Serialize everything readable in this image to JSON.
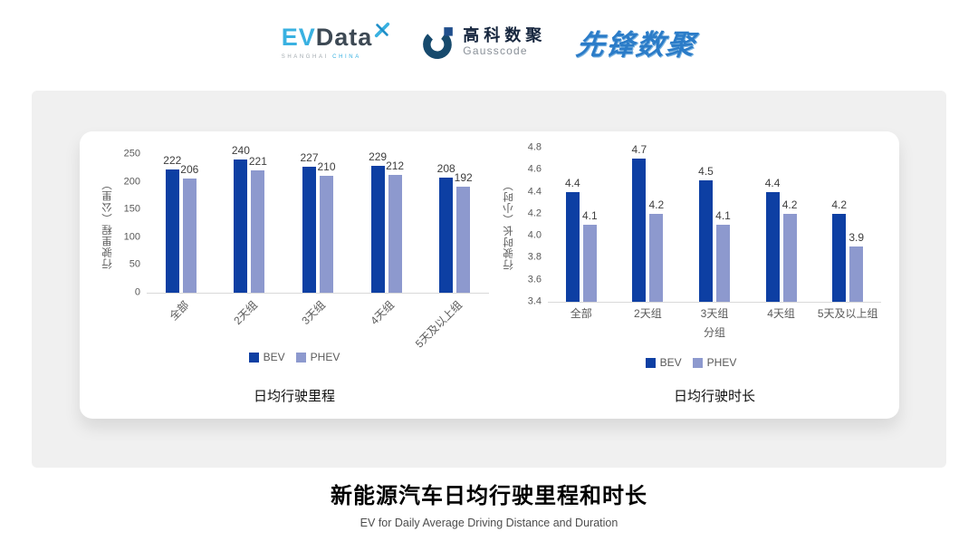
{
  "header": {
    "evdata_logo": {
      "ev": "EV",
      "data": "Data",
      "sub_shanghai": "SHANGHAI",
      "sub_china": "CHINA"
    },
    "gausscode_logo": {
      "cn": "高科数聚",
      "en": "Gausscode"
    },
    "pioneer_logo": {
      "text": "先锋数聚"
    }
  },
  "chart_data": [
    {
      "type": "bar",
      "title": "日均行驶里程",
      "categories": [
        "全部",
        "2天组",
        "3天组",
        "4天组",
        "5天及以上组"
      ],
      "series": [
        {
          "name": "BEV",
          "color": "#0d3fa3",
          "values": [
            222,
            240,
            227,
            229,
            208
          ],
          "labels": [
            "222",
            "240",
            "227",
            "229",
            "208"
          ]
        },
        {
          "name": "PHEV",
          "color": "#8d99ce",
          "values": [
            206,
            221,
            210,
            212,
            192
          ],
          "labels": [
            "206",
            "221",
            "210",
            "212",
            "192"
          ]
        }
      ],
      "xlabel": "",
      "ylabel": "行驶里程（公里）",
      "ylim": [
        0,
        250
      ],
      "ytick_values": [
        0,
        50,
        100,
        150,
        200,
        250
      ],
      "ytick_labels": [
        "0",
        "50",
        "100",
        "150",
        "200",
        "250"
      ],
      "x_tick_rotation": 45,
      "legend_position": "bottom",
      "grid": false
    },
    {
      "type": "bar",
      "title": "日均行驶时长",
      "categories": [
        "全部",
        "2天组",
        "3天组",
        "4天组",
        "5天及以上组"
      ],
      "series": [
        {
          "name": "BEV",
          "color": "#0d3fa3",
          "values": [
            4.4,
            4.7,
            4.5,
            4.4,
            4.2
          ],
          "labels": [
            "4.4",
            "4.7",
            "4.5",
            "4.4",
            "4.2"
          ]
        },
        {
          "name": "PHEV",
          "color": "#8d99ce",
          "values": [
            4.1,
            4.2,
            4.1,
            4.2,
            3.9
          ],
          "labels": [
            "4.1",
            "4.2",
            "4.1",
            "4.2",
            "3.9"
          ]
        }
      ],
      "xlabel": "分组",
      "ylabel": "行驶时长（小时）",
      "ylim": [
        3.4,
        4.8
      ],
      "ytick_values": [
        3.4,
        3.6,
        3.8,
        4.0,
        4.2,
        4.4,
        4.6,
        4.8
      ],
      "ytick_labels": [
        "3.4",
        "3.6",
        "3.8",
        "4.0",
        "4.2",
        "4.4",
        "4.6",
        "4.8"
      ],
      "x_tick_rotation": 0,
      "legend_position": "bottom",
      "grid": false
    }
  ],
  "footer": {
    "title": "新能源汽车日均行驶里程和时长",
    "subtitle": "EV for Daily Average Driving Distance and Duration"
  }
}
